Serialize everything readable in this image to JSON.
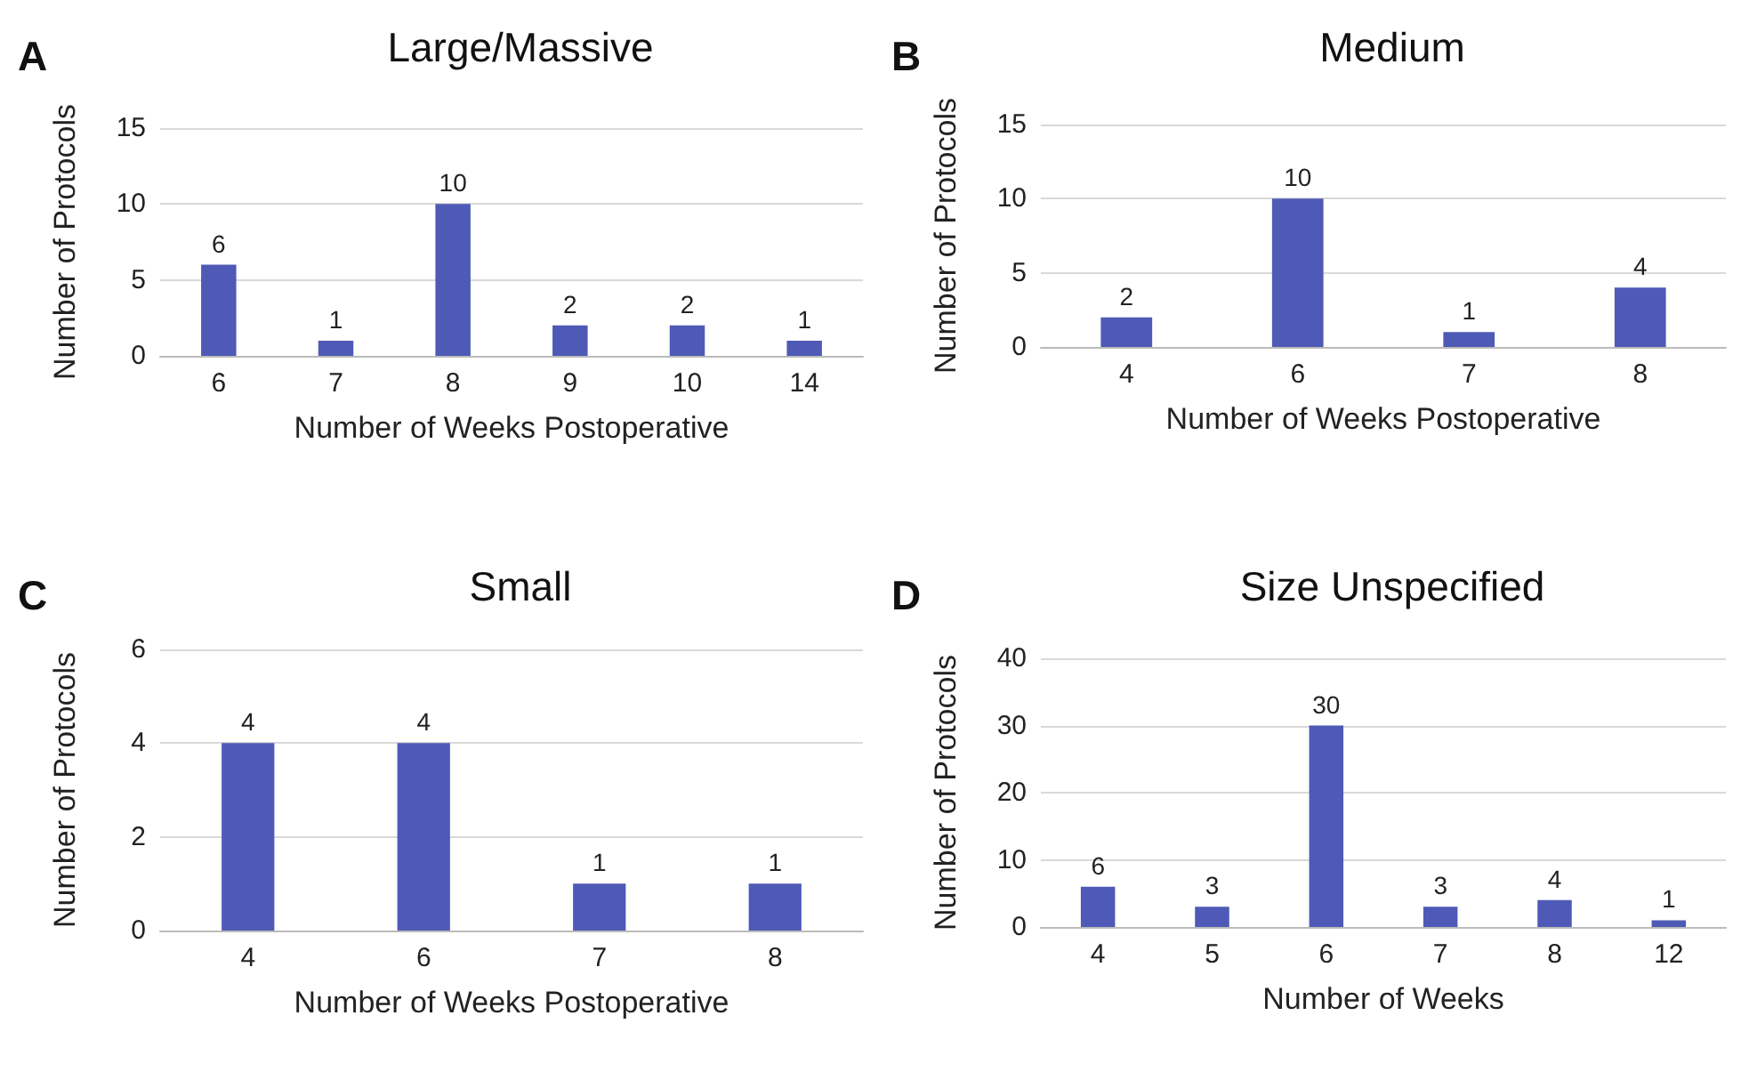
{
  "chart_data": [
    {
      "type": "bar",
      "title": "Large/Massive",
      "annotations": [
        "A"
      ],
      "xlabel": "Number of Weeks Postoperative",
      "ylabel": "Number of Protocols",
      "categories": [
        "6",
        "7",
        "8",
        "9",
        "10",
        "14"
      ],
      "values": [
        6,
        1,
        10,
        2,
        2,
        1
      ],
      "color": "#4e5ab6",
      "ylim": [
        0,
        15
      ],
      "yticks": [
        0,
        5,
        10,
        15
      ],
      "grid": "y",
      "data_labels": true
    },
    {
      "type": "bar",
      "title": "Medium",
      "annotations": [
        "B"
      ],
      "xlabel": "Number of Weeks Postoperative",
      "ylabel": "Number of Protocols",
      "categories": [
        "4",
        "6",
        "7",
        "8"
      ],
      "values": [
        2,
        10,
        1,
        4
      ],
      "color": "#4e5ab6",
      "ylim": [
        0,
        15
      ],
      "yticks": [
        0,
        5,
        10,
        15
      ],
      "grid": "y",
      "data_labels": true
    },
    {
      "type": "bar",
      "title": "Small",
      "annotations": [
        "C"
      ],
      "xlabel": "Number of Weeks Postoperative",
      "ylabel": "Number of Protocols",
      "categories": [
        "4",
        "6",
        "7",
        "8"
      ],
      "values": [
        4,
        4,
        1,
        1
      ],
      "color": "#4e5ab6",
      "ylim": [
        0,
        6
      ],
      "yticks": [
        0,
        2,
        4,
        6
      ],
      "grid": "y",
      "data_labels": true
    },
    {
      "type": "bar",
      "title": "Size Unspecified",
      "annotations": [
        "D"
      ],
      "xlabel": "Number of Weeks",
      "ylabel": "Number of Protocols",
      "categories": [
        "4",
        "5",
        "6",
        "7",
        "8",
        "12"
      ],
      "values": [
        6,
        3,
        30,
        3,
        4,
        1
      ],
      "color": "#4e5ab6",
      "ylim": [
        0,
        40
      ],
      "yticks": [
        0,
        10,
        20,
        30,
        40
      ],
      "grid": "y",
      "data_labels": true
    }
  ]
}
